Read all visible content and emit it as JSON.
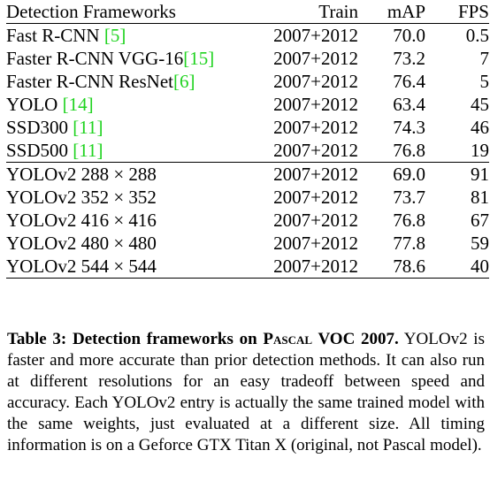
{
  "table": {
    "headers": {
      "name": "Detection Frameworks",
      "train": "Train",
      "map": "mAP",
      "fps": "FPS"
    },
    "group1": [
      {
        "name": "Fast R-CNN ",
        "cite": "[5]",
        "train": "2007+2012",
        "map": "70.0",
        "fps": "0.5"
      },
      {
        "name": "Faster R-CNN VGG-16",
        "cite": "[15]",
        "train": "2007+2012",
        "map": "73.2",
        "fps": "7"
      },
      {
        "name": "Faster R-CNN ResNet",
        "cite": "[6]",
        "train": "2007+2012",
        "map": "76.4",
        "fps": "5"
      },
      {
        "name": "YOLO ",
        "cite": "[14]",
        "train": "2007+2012",
        "map": "63.4",
        "fps": "45"
      },
      {
        "name": "SSD300 ",
        "cite": "[11]",
        "train": "2007+2012",
        "map": "74.3",
        "fps": "46"
      },
      {
        "name": "SSD500 ",
        "cite": "[11]",
        "train": "2007+2012",
        "map": "76.8",
        "fps": "19"
      }
    ],
    "group2": [
      {
        "name": "YOLOv2 288 × 288",
        "train": "2007+2012",
        "map": "69.0",
        "fps": "91"
      },
      {
        "name": "YOLOv2 352 × 352",
        "train": "2007+2012",
        "map": "73.7",
        "fps": "81"
      },
      {
        "name": "YOLOv2 416 × 416",
        "train": "2007+2012",
        "map": "76.8",
        "fps": "67"
      },
      {
        "name": "YOLOv2 480 × 480",
        "train": "2007+2012",
        "map": "77.8",
        "fps": "59"
      },
      {
        "name": "YOLOv2 544 × 544",
        "train": "2007+2012",
        "map": "78.6",
        "fps": "40"
      }
    ]
  },
  "caption": {
    "label": "Table 3:",
    "title_a": " Detection frameworks on ",
    "title_sc": "Pascal",
    "title_b": " VOC 2007.",
    "body": " YOLOv2 is faster and more accurate than prior detection methods. It can also run at different resolutions for an easy tradeoff between speed and accuracy. Each YOLOv2 entry is actually the same trained model with the same weights, just evaluated at a different size. All timing information is on a Geforce GTX Titan X (original, not Pascal model)."
  },
  "colors": {
    "citation": "#1fd31f",
    "text": "#000000"
  }
}
